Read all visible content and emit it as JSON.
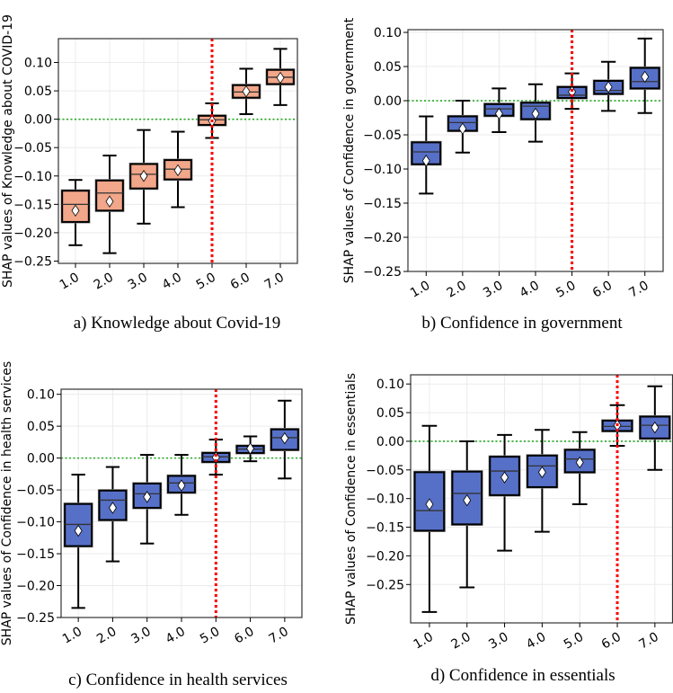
{
  "colors": {
    "salmon": "#F2A68A",
    "blue": "#5670C8",
    "ref_v": "#FF0000",
    "ref_h": "#22AA22"
  },
  "chart_data": [
    {
      "type": "box",
      "caption": "a)   Knowledge about Covid-19",
      "ylabel": "SHAP values of Knowledge about COVID-19",
      "categories": [
        "1.0",
        "2.0",
        "3.0",
        "4.0",
        "5.0",
        "6.0",
        "7.0"
      ],
      "yticks": [
        0.1,
        0.05,
        0.0,
        -0.05,
        -0.1,
        -0.15,
        -0.2,
        -0.25
      ],
      "ytick_labels": [
        "0.10",
        "0.05",
        "0.00",
        "−0.05",
        "−0.10",
        "−0.15",
        "−0.20",
        "−0.25"
      ],
      "ylim": [
        -0.254,
        0.142
      ],
      "xlim": [
        0.5,
        7.5
      ],
      "color": "salmon",
      "vline": 5,
      "hline": 0,
      "grid": true,
      "boxes": [
        {
          "whislo": -0.222,
          "q1": -0.181,
          "med": -0.15,
          "q3": -0.126,
          "whishi": -0.107,
          "mean": -0.161
        },
        {
          "whislo": -0.236,
          "q1": -0.161,
          "med": -0.13,
          "q3": -0.108,
          "whishi": -0.064,
          "mean": -0.145
        },
        {
          "whislo": -0.184,
          "q1": -0.122,
          "med": -0.097,
          "q3": -0.079,
          "whishi": -0.019,
          "mean": -0.1
        },
        {
          "whislo": -0.155,
          "q1": -0.106,
          "med": -0.088,
          "q3": -0.072,
          "whishi": -0.022,
          "mean": -0.09
        },
        {
          "whislo": -0.033,
          "q1": -0.01,
          "med": -0.001,
          "q3": 0.006,
          "whishi": 0.028,
          "mean": -0.003
        },
        {
          "whislo": 0.009,
          "q1": 0.038,
          "med": 0.048,
          "q3": 0.06,
          "whishi": 0.089,
          "mean": 0.049
        },
        {
          "whislo": 0.025,
          "q1": 0.062,
          "med": 0.074,
          "q3": 0.087,
          "whishi": 0.124,
          "mean": 0.073
        }
      ]
    },
    {
      "type": "box",
      "caption": "b)   Confidence in government",
      "ylabel": "SHAP values of Confidence in government",
      "categories": [
        "1.0",
        "2.0",
        "3.0",
        "4.0",
        "5.0",
        "6.0",
        "7.0"
      ],
      "yticks": [
        0.1,
        0.05,
        0.0,
        -0.05,
        -0.1,
        -0.15,
        -0.2,
        -0.25
      ],
      "ytick_labels": [
        "0.10",
        "0.05",
        "0.00",
        "−0.05",
        "−0.10",
        "−0.15",
        "−0.20",
        "−0.25"
      ],
      "ylim": [
        -0.25,
        0.104
      ],
      "xlim": [
        0.5,
        7.5
      ],
      "color": "blue",
      "vline": 5,
      "hline": 0,
      "grid": true,
      "boxes": [
        {
          "whislo": -0.136,
          "q1": -0.093,
          "med": -0.075,
          "q3": -0.061,
          "whishi": -0.023,
          "mean": -0.088
        },
        {
          "whislo": -0.076,
          "q1": -0.044,
          "med": -0.032,
          "q3": -0.023,
          "whishi": 0.0,
          "mean": -0.041
        },
        {
          "whislo": -0.046,
          "q1": -0.022,
          "med": -0.012,
          "q3": -0.005,
          "whishi": 0.018,
          "mean": -0.019
        },
        {
          "whislo": -0.06,
          "q1": -0.027,
          "med": -0.008,
          "q3": -0.003,
          "whishi": 0.024,
          "mean": -0.019
        },
        {
          "whislo": -0.012,
          "q1": 0.004,
          "med": 0.008,
          "q3": 0.02,
          "whishi": 0.04,
          "mean": 0.013
        },
        {
          "whislo": -0.015,
          "q1": 0.01,
          "med": 0.015,
          "q3": 0.029,
          "whishi": 0.057,
          "mean": 0.02
        },
        {
          "whislo": -0.018,
          "q1": 0.018,
          "med": 0.028,
          "q3": 0.048,
          "whishi": 0.091,
          "mean": 0.035
        }
      ]
    },
    {
      "type": "box",
      "caption": "c)   Confidence in health services",
      "ylabel": "SHAP values of Confidence in health services",
      "categories": [
        "1.0",
        "2.0",
        "3.0",
        "4.0",
        "5.0",
        "6.0",
        "7.0"
      ],
      "yticks": [
        0.1,
        0.05,
        0.0,
        -0.05,
        -0.1,
        -0.15,
        -0.2,
        -0.25
      ],
      "ytick_labels": [
        "0.10",
        "0.05",
        "0.00",
        "−0.05",
        "−0.10",
        "−0.15",
        "−0.20",
        "−0.25"
      ],
      "ylim": [
        -0.25,
        0.108
      ],
      "xlim": [
        0.5,
        7.5
      ],
      "color": "blue",
      "vline": 5,
      "hline": 0,
      "grid": true,
      "boxes": [
        {
          "whislo": -0.235,
          "q1": -0.138,
          "med": -0.104,
          "q3": -0.072,
          "whishi": -0.026,
          "mean": -0.114
        },
        {
          "whislo": -0.162,
          "q1": -0.097,
          "med": -0.066,
          "q3": -0.051,
          "whishi": -0.014,
          "mean": -0.078
        },
        {
          "whislo": -0.134,
          "q1": -0.078,
          "med": -0.056,
          "q3": -0.04,
          "whishi": 0.005,
          "mean": -0.061
        },
        {
          "whislo": -0.089,
          "q1": -0.054,
          "med": -0.039,
          "q3": -0.028,
          "whishi": 0.005,
          "mean": -0.043
        },
        {
          "whislo": -0.026,
          "q1": -0.006,
          "med": 0.002,
          "q3": 0.008,
          "whishi": 0.029,
          "mean": 0.001
        },
        {
          "whislo": -0.005,
          "q1": 0.008,
          "med": 0.014,
          "q3": 0.019,
          "whishi": 0.034,
          "mean": 0.015
        },
        {
          "whislo": -0.032,
          "q1": 0.013,
          "med": 0.032,
          "q3": 0.045,
          "whishi": 0.09,
          "mean": 0.031
        }
      ]
    },
    {
      "type": "box",
      "caption": "d)   Confidence in essentials",
      "ylabel": "SHAP values of Confidence in essentials",
      "categories": [
        "1.0",
        "2.0",
        "3.0",
        "4.0",
        "5.0",
        "6.0",
        "7.0"
      ],
      "yticks": [
        0.1,
        0.05,
        0.0,
        -0.05,
        -0.1,
        -0.15,
        -0.2,
        -0.25
      ],
      "ytick_labels": [
        "0.10",
        "0.05",
        "0.00",
        "−0.05",
        "−0.10",
        "−0.15",
        "−0.20",
        "−0.25"
      ],
      "ylim": [
        -0.317,
        0.116
      ],
      "xlim": [
        0.5,
        7.47
      ],
      "color": "blue",
      "vline": 6,
      "hline": 0,
      "grid": true,
      "boxes": [
        {
          "whislo": -0.298,
          "q1": -0.156,
          "med": -0.121,
          "q3": -0.054,
          "whishi": 0.027,
          "mean": -0.11
        },
        {
          "whislo": -0.255,
          "q1": -0.145,
          "med": -0.091,
          "q3": -0.053,
          "whishi": 0.0,
          "mean": -0.103
        },
        {
          "whislo": -0.191,
          "q1": -0.094,
          "med": -0.052,
          "q3": -0.027,
          "whishi": 0.011,
          "mean": -0.063
        },
        {
          "whislo": -0.158,
          "q1": -0.08,
          "med": -0.043,
          "q3": -0.025,
          "whishi": 0.02,
          "mean": -0.054
        },
        {
          "whislo": -0.11,
          "q1": -0.054,
          "med": -0.031,
          "q3": -0.015,
          "whishi": 0.016,
          "mean": -0.037
        },
        {
          "whislo": -0.008,
          "q1": 0.018,
          "med": 0.026,
          "q3": 0.036,
          "whishi": 0.063,
          "mean": 0.028
        },
        {
          "whislo": -0.05,
          "q1": 0.005,
          "med": 0.028,
          "q3": 0.043,
          "whishi": 0.096,
          "mean": 0.024
        }
      ]
    }
  ]
}
